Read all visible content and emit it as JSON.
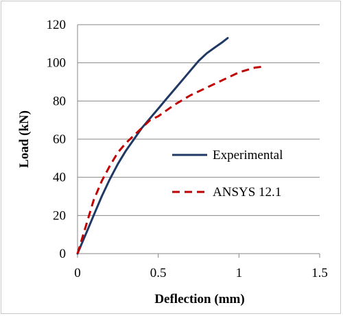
{
  "chart_data": {
    "type": "line",
    "xlabel": "Deflection (mm)",
    "ylabel": "Load (kN)",
    "xlim": [
      0,
      1.5
    ],
    "ylim": [
      0,
      120
    ],
    "x_ticks": [
      "0",
      "0.5",
      "1",
      "1.5"
    ],
    "y_ticks": [
      "0",
      "20",
      "40",
      "60",
      "80",
      "100",
      "120"
    ],
    "grid": "horizontal major gridlines",
    "legend_position": "right-center",
    "series": [
      {
        "name": "Experimental",
        "color": "#1f3864",
        "style": "solid",
        "x": [
          0,
          0.05,
          0.1,
          0.15,
          0.2,
          0.25,
          0.3,
          0.35,
          0.4,
          0.45,
          0.5,
          0.55,
          0.6,
          0.65,
          0.7,
          0.75,
          0.8,
          0.85,
          0.9,
          0.93
        ],
        "y": [
          0,
          10,
          20,
          30,
          39,
          47,
          54,
          60,
          66,
          71,
          76,
          81,
          86,
          91,
          96,
          101,
          105,
          108,
          111,
          113
        ]
      },
      {
        "name": "ANSYS 12.1",
        "color": "#c00000",
        "style": "dashed",
        "x": [
          0,
          0.05,
          0.1,
          0.15,
          0.2,
          0.25,
          0.3,
          0.35,
          0.4,
          0.45,
          0.5,
          0.6,
          0.7,
          0.8,
          0.9,
          1.0,
          1.1,
          1.15
        ],
        "y": [
          0,
          14,
          28,
          38,
          46,
          53,
          58,
          62,
          66,
          70,
          72,
          78,
          83,
          87,
          91,
          95,
          97.5,
          98
        ]
      }
    ]
  }
}
